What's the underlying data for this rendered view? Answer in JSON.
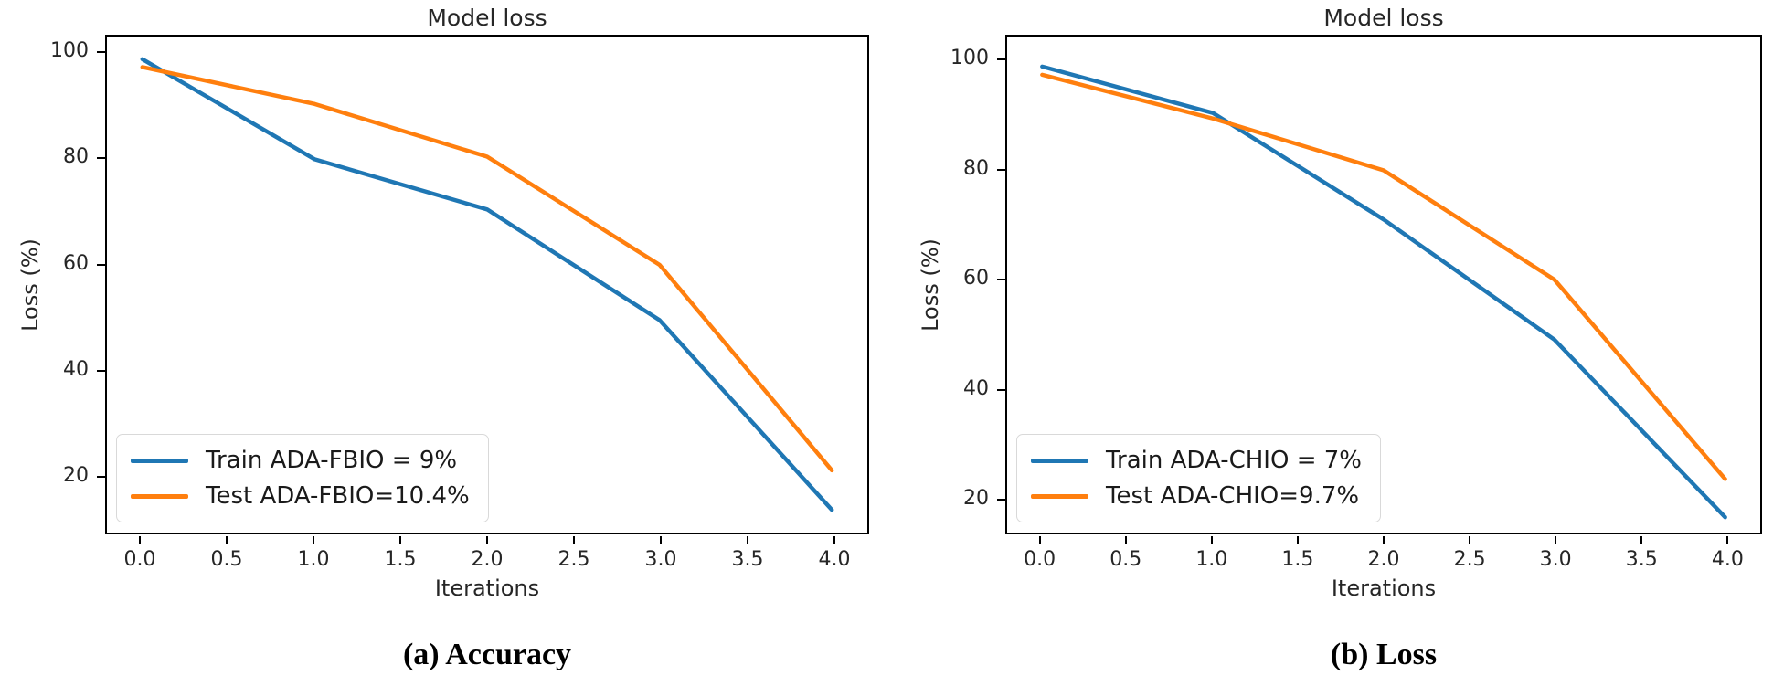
{
  "page": {
    "background": "#ffffff"
  },
  "chart_data": [
    {
      "type": "line",
      "title": "Model loss",
      "xlabel": "Iterations",
      "ylabel": "Loss (%)",
      "caption": "(a) Accuracy",
      "x": [
        0,
        1,
        2,
        3,
        4
      ],
      "xlim": [
        -0.2,
        4.2
      ],
      "ylim": [
        9.2,
        103.3
      ],
      "xticks": {
        "values": [
          0,
          0.5,
          1,
          1.5,
          2,
          2.5,
          3,
          3.5,
          4
        ],
        "labels": [
          "0.0",
          "0.5",
          "1.0",
          "1.5",
          "2.0",
          "2.5",
          "3.0",
          "3.5",
          "4.0"
        ]
      },
      "yticks": {
        "values": [
          20,
          40,
          60,
          80,
          100
        ],
        "labels": [
          "20",
          "40",
          "60",
          "80",
          "100"
        ]
      },
      "grid": false,
      "legend_position": "lower left",
      "series": [
        {
          "name": "Train ADA-FBIO = 9%",
          "color": "#1f77b4",
          "values": [
            99,
            80,
            70.5,
            49.5,
            13.5
          ]
        },
        {
          "name": "Test ADA-FBIO=10.4%",
          "color": "#ff7f0e",
          "values": [
            97.5,
            90.5,
            80.5,
            60,
            21
          ]
        }
      ]
    },
    {
      "type": "line",
      "title": "Model loss",
      "xlabel": "Iterations",
      "ylabel": "Loss (%)",
      "caption": "(b) Loss",
      "x": [
        0,
        1,
        2,
        3,
        4
      ],
      "xlim": [
        -0.2,
        4.2
      ],
      "ylim": [
        13.7,
        104.5
      ],
      "xticks": {
        "values": [
          0,
          0.5,
          1,
          1.5,
          2,
          2.5,
          3,
          3.5,
          4
        ],
        "labels": [
          "0.0",
          "0.5",
          "1.0",
          "1.5",
          "2.0",
          "2.5",
          "3.0",
          "3.5",
          "4.0"
        ]
      },
      "yticks": {
        "values": [
          20,
          40,
          60,
          80,
          100
        ],
        "labels": [
          "20",
          "40",
          "60",
          "80",
          "100"
        ]
      },
      "grid": false,
      "legend_position": "lower left",
      "series": [
        {
          "name": "Train ADA-CHIO = 7%",
          "color": "#1f77b4",
          "values": [
            99,
            90.5,
            71,
            49,
            16.5
          ]
        },
        {
          "name": "Test ADA-CHIO=9.7%",
          "color": "#ff7f0e",
          "values": [
            97.5,
            89.5,
            80,
            60,
            23.5
          ]
        }
      ]
    }
  ]
}
